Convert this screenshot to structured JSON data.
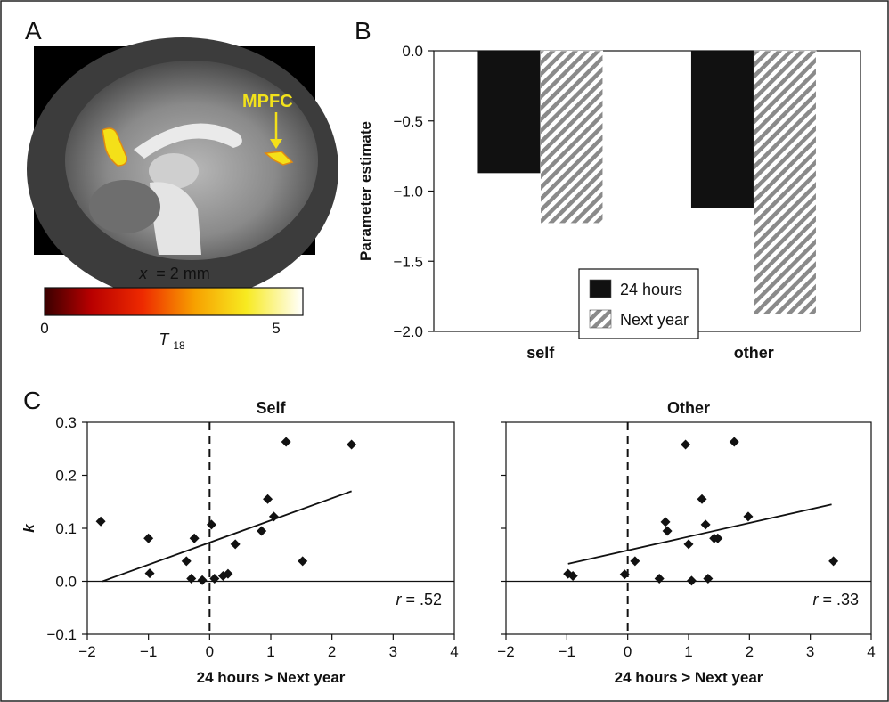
{
  "panel_letters": {
    "a": "A",
    "b": "B",
    "c": "C"
  },
  "brain": {
    "annotation": "MPFC",
    "slice_prefix": "x",
    "slice_value": "= 2 mm",
    "colorbar_min": "0",
    "colorbar_max": "5",
    "stat_label": "T",
    "stat_sub": "18",
    "colors": {
      "background": "#000000",
      "activation": "#f4e019",
      "activation_edge": "#e08a12"
    }
  },
  "colors": {
    "bar_solid": "#111111",
    "bar_hatch": "#8a8a8a",
    "points": "#111111",
    "fit_line": "#111111"
  },
  "chart_data": [
    {
      "type": "bar",
      "panel": "B",
      "categories": [
        "self",
        "other"
      ],
      "series": [
        {
          "name": "24 hours",
          "values": [
            -0.87,
            -1.12
          ],
          "pattern": "solid"
        },
        {
          "name": "Next year",
          "values": [
            -1.23,
            -1.88
          ],
          "pattern": "hatch"
        }
      ],
      "title": "",
      "xlabel": "",
      "ylabel": "Parameter estimate",
      "ylim": [
        -2.0,
        0.0
      ],
      "yticks": [
        0.0,
        -0.5,
        -1.0,
        -1.5,
        -2.0
      ],
      "ytick_labels": [
        "0.0",
        "−0.5",
        "−1.0",
        "−1.5",
        "−2.0"
      ],
      "legend": "inside-bottom-center",
      "grid": false
    },
    {
      "type": "scatter",
      "panel": "C",
      "title": "Self",
      "xlabel": "24 hours > Next year",
      "ylabel": "k",
      "xlim": [
        -2,
        4
      ],
      "ylim": [
        -0.1,
        0.3
      ],
      "xticks": [
        -2,
        -1,
        0,
        1,
        2,
        3,
        4
      ],
      "xtick_labels": [
        "−2",
        "−1",
        "0",
        "1",
        "2",
        "3",
        "4"
      ],
      "yticks": [
        -0.1,
        0.0,
        0.1,
        0.2,
        0.3
      ],
      "ytick_labels": [
        "−0.1",
        "0.0",
        "0.1",
        "0.2",
        "0.3"
      ],
      "r_label": "r",
      "r_value": "= .52",
      "points": [
        {
          "x": -1.78,
          "y": 0.113
        },
        {
          "x": -1.0,
          "y": 0.081
        },
        {
          "x": -0.98,
          "y": 0.015
        },
        {
          "x": -0.38,
          "y": 0.038
        },
        {
          "x": -0.25,
          "y": 0.081
        },
        {
          "x": -0.3,
          "y": 0.005
        },
        {
          "x": -0.12,
          "y": 0.002
        },
        {
          "x": 0.03,
          "y": 0.107
        },
        {
          "x": 0.08,
          "y": 0.005
        },
        {
          "x": 0.22,
          "y": 0.01
        },
        {
          "x": 0.3,
          "y": 0.014
        },
        {
          "x": 0.42,
          "y": 0.07
        },
        {
          "x": 0.85,
          "y": 0.095
        },
        {
          "x": 0.95,
          "y": 0.155
        },
        {
          "x": 1.05,
          "y": 0.122
        },
        {
          "x": 1.25,
          "y": 0.263
        },
        {
          "x": 1.52,
          "y": 0.038
        },
        {
          "x": 2.32,
          "y": 0.258
        }
      ],
      "fit_line": [
        {
          "x": -1.75,
          "y": 0.0
        },
        {
          "x": 2.32,
          "y": 0.17
        }
      ],
      "reference_lines": {
        "x": 0,
        "y": 0
      }
    },
    {
      "type": "scatter",
      "panel": "C",
      "title": "Other",
      "xlabel": "24 hours > Next year",
      "ylabel": "",
      "xlim": [
        -2,
        4
      ],
      "ylim": [
        -0.1,
        0.3
      ],
      "xticks": [
        -2,
        -1,
        0,
        1,
        2,
        3,
        4
      ],
      "xtick_labels": [
        "−2",
        "−1",
        "0",
        "1",
        "2",
        "3",
        "4"
      ],
      "yticks": [
        -0.1,
        0.0,
        0.1,
        0.2,
        0.3
      ],
      "r_label": "r",
      "r_value": "= .33",
      "points": [
        {
          "x": -0.98,
          "y": 0.014
        },
        {
          "x": -0.9,
          "y": 0.01
        },
        {
          "x": -0.05,
          "y": 0.013
        },
        {
          "x": 0.12,
          "y": 0.038
        },
        {
          "x": 0.52,
          "y": 0.005
        },
        {
          "x": 0.62,
          "y": 0.112
        },
        {
          "x": 0.65,
          "y": 0.095
        },
        {
          "x": 0.95,
          "y": 0.258
        },
        {
          "x": 1.0,
          "y": 0.07
        },
        {
          "x": 1.05,
          "y": 0.001
        },
        {
          "x": 1.22,
          "y": 0.155
        },
        {
          "x": 1.28,
          "y": 0.107
        },
        {
          "x": 1.32,
          "y": 0.005
        },
        {
          "x": 1.42,
          "y": 0.081
        },
        {
          "x": 1.48,
          "y": 0.081
        },
        {
          "x": 1.75,
          "y": 0.263
        },
        {
          "x": 1.98,
          "y": 0.122
        },
        {
          "x": 3.38,
          "y": 0.038
        }
      ],
      "fit_line": [
        {
          "x": -0.98,
          "y": 0.033
        },
        {
          "x": 3.35,
          "y": 0.145
        }
      ],
      "reference_lines": {
        "x": 0,
        "y": 0
      }
    }
  ]
}
